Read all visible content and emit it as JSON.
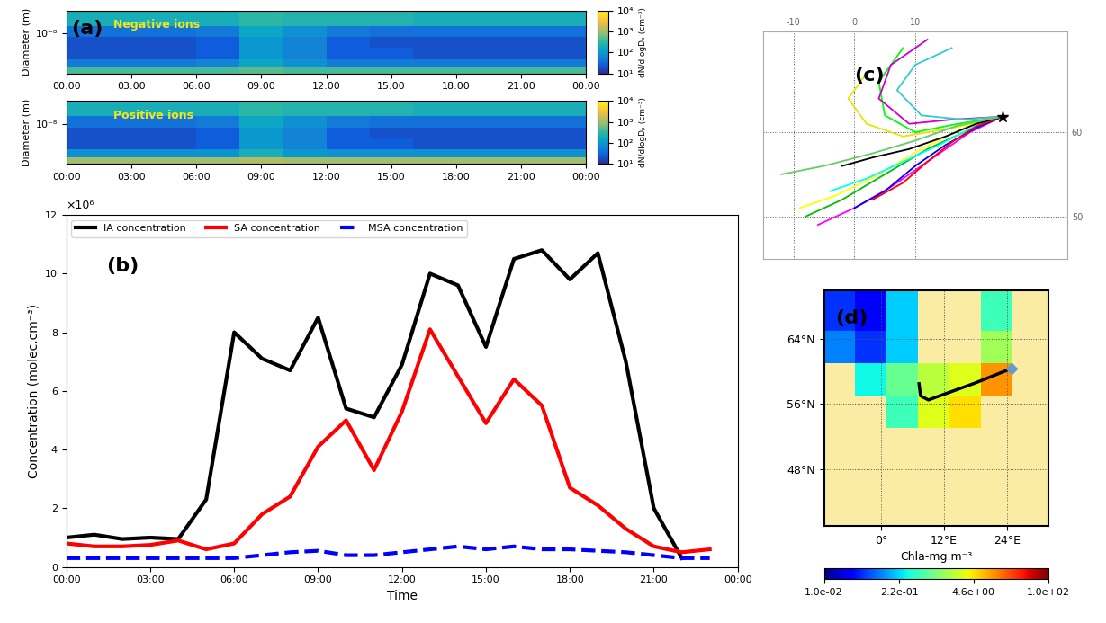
{
  "chart_data": [
    {
      "type": "heatmap",
      "panel_label": "(a)",
      "title": "Negative ions",
      "ylabel": "Diameter (m)",
      "log": "y",
      "x_edges": [
        0,
        2,
        4,
        6,
        8,
        10,
        12,
        14,
        16,
        18,
        20,
        22,
        24
      ],
      "y_edges": [
        8e-10,
        1.2e-09,
        2e-09,
        4e-09,
        8e-09,
        1.6e-08,
        4.2e-08
      ],
      "cells": [
        [
          400,
          400,
          400,
          400,
          500,
          400,
          400,
          400,
          400,
          400,
          400,
          400
        ],
        [
          50,
          50,
          50,
          60,
          150,
          80,
          50,
          50,
          50,
          50,
          50,
          50
        ],
        [
          20,
          20,
          20,
          25,
          100,
          60,
          25,
          25,
          20,
          20,
          20,
          20
        ],
        [
          20,
          20,
          20,
          25,
          100,
          60,
          25,
          20,
          20,
          20,
          20,
          20
        ],
        [
          40,
          40,
          40,
          50,
          150,
          80,
          50,
          40,
          40,
          40,
          40,
          40
        ],
        [
          200,
          200,
          200,
          200,
          300,
          250,
          250,
          250,
          200,
          200,
          200,
          200
        ]
      ],
      "xlim": [
        0,
        24
      ],
      "xticks": [
        {
          "value": 0,
          "label": "00:00"
        },
        {
          "value": 3,
          "label": "03:00"
        },
        {
          "value": 6,
          "label": "06:00"
        },
        {
          "value": 9,
          "label": "09:00"
        },
        {
          "value": 12,
          "label": "12:00"
        },
        {
          "value": 15,
          "label": "15:00"
        },
        {
          "value": 18,
          "label": "18:00"
        },
        {
          "value": 21,
          "label": "21:00"
        },
        {
          "value": 24,
          "label": "00:00"
        }
      ],
      "ylim": [
        8e-10,
        4.2e-08
      ],
      "yticks": [
        {
          "value": 1e-08,
          "label": "10⁻⁸"
        }
      ],
      "colorbar": {
        "label": "dN/dlogDₚ (cm⁻³)",
        "log": true,
        "lim": [
          10,
          10000
        ],
        "ticks": [
          {
            "value": 10,
            "label": "10¹"
          },
          {
            "value": 100,
            "label": "10²"
          },
          {
            "value": 1000,
            "label": "10³"
          },
          {
            "value": 10000,
            "label": "10⁴"
          }
        ]
      }
    },
    {
      "type": "heatmap",
      "title": "Positive ions",
      "ylabel": "Diameter (m)",
      "log": "y",
      "x_edges": [
        0,
        2,
        4,
        6,
        8,
        10,
        12,
        14,
        16,
        18,
        20,
        22,
        24
      ],
      "y_edges": [
        8e-10,
        1.2e-09,
        2e-09,
        4e-09,
        8e-09,
        1.6e-08,
        4.2e-08
      ],
      "cells": [
        [
          1000,
          1000,
          1000,
          1000,
          1200,
          1000,
          1000,
          1000,
          1000,
          1000,
          1000,
          1000
        ],
        [
          80,
          80,
          80,
          90,
          200,
          100,
          80,
          80,
          80,
          80,
          80,
          80
        ],
        [
          20,
          20,
          20,
          25,
          100,
          60,
          25,
          25,
          20,
          20,
          20,
          20
        ],
        [
          20,
          20,
          20,
          25,
          100,
          60,
          25,
          20,
          20,
          20,
          20,
          20
        ],
        [
          40,
          40,
          40,
          50,
          150,
          80,
          50,
          40,
          40,
          40,
          40,
          40
        ],
        [
          200,
          200,
          200,
          200,
          300,
          250,
          250,
          250,
          200,
          200,
          200,
          200
        ]
      ],
      "xlim": [
        0,
        24
      ],
      "xticks": [
        {
          "value": 0,
          "label": "00:00"
        },
        {
          "value": 3,
          "label": "03:00"
        },
        {
          "value": 6,
          "label": "06:00"
        },
        {
          "value": 9,
          "label": "09:00"
        },
        {
          "value": 12,
          "label": "12:00"
        },
        {
          "value": 15,
          "label": "15:00"
        },
        {
          "value": 18,
          "label": "18:00"
        },
        {
          "value": 21,
          "label": "21:00"
        },
        {
          "value": 24,
          "label": "00:00"
        }
      ],
      "ylim": [
        8e-10,
        4.2e-08
      ],
      "yticks": [
        {
          "value": 1e-08,
          "label": "10⁻⁸"
        }
      ],
      "colorbar": {
        "label": "dN/dlogDₚ (cm⁻³)",
        "log": true,
        "lim": [
          10,
          10000
        ],
        "ticks": [
          {
            "value": 10,
            "label": "10¹"
          },
          {
            "value": 100,
            "label": "10²"
          },
          {
            "value": 1000,
            "label": "10³"
          },
          {
            "value": 10000,
            "label": "10⁴"
          }
        ]
      }
    },
    {
      "type": "line",
      "panel_label": "(b)",
      "xlabel": "Time",
      "ylabel": "Concentration (molec.cm⁻³)",
      "annotations": [
        "×10⁶"
      ],
      "grid": false,
      "legend": "upper left",
      "x": [
        0,
        1,
        2,
        3,
        4,
        5,
        6,
        7,
        8,
        9,
        10,
        11,
        12,
        13,
        14,
        15,
        16,
        17,
        18,
        19,
        20,
        21,
        22,
        23
      ],
      "series": [
        {
          "name": "IA concentration",
          "color": "#000000",
          "line_style": "solid",
          "values": [
            1.0,
            1.1,
            0.95,
            1.0,
            0.95,
            2.3,
            8.0,
            7.1,
            6.7,
            8.5,
            5.4,
            5.1,
            6.9,
            10.0,
            9.6,
            7.5,
            10.5,
            10.8,
            9.8,
            10.7,
            7.0,
            2.0,
            0.3,
            null
          ]
        },
        {
          "name": "SA concentration",
          "color": "#ff0000",
          "line_style": "solid",
          "values": [
            0.8,
            0.7,
            0.7,
            0.75,
            0.9,
            0.6,
            0.8,
            1.8,
            2.4,
            4.1,
            5.0,
            3.3,
            5.3,
            8.1,
            6.5,
            4.9,
            6.4,
            5.5,
            2.7,
            2.1,
            1.3,
            0.7,
            0.5,
            0.6
          ]
        },
        {
          "name": "MSA concentration",
          "color": "#0000ff",
          "line_style": "dashed",
          "values": [
            0.3,
            0.3,
            0.3,
            0.3,
            0.3,
            0.3,
            0.3,
            0.4,
            0.5,
            0.55,
            0.4,
            0.4,
            0.5,
            0.6,
            0.7,
            0.6,
            0.7,
            0.6,
            0.6,
            0.55,
            0.5,
            0.4,
            0.3,
            0.3
          ]
        }
      ],
      "xlim": [
        0,
        24
      ],
      "xticks": [
        {
          "value": 0,
          "label": "00:00"
        },
        {
          "value": 3,
          "label": "03:00"
        },
        {
          "value": 6,
          "label": "06:00"
        },
        {
          "value": 9,
          "label": "09:00"
        },
        {
          "value": 12,
          "label": "12:00"
        },
        {
          "value": 15,
          "label": "15:00"
        },
        {
          "value": 18,
          "label": "18:00"
        },
        {
          "value": 21,
          "label": "21:00"
        },
        {
          "value": 24,
          "label": "00:00"
        }
      ],
      "ylim": [
        0,
        12
      ],
      "yticks": [
        0,
        2,
        4,
        6,
        8,
        10,
        12
      ]
    },
    {
      "type": "trajectory_map",
      "panel_label": "(c)",
      "grid": true,
      "xlim": [
        -15,
        35
      ],
      "xticks": [
        -10,
        0,
        10
      ],
      "ylim": [
        45,
        72
      ],
      "yticks": [
        50,
        60
      ],
      "station": {
        "lon": 24.3,
        "lat": 61.85
      },
      "trajectories": [
        {
          "color": "#00c000",
          "lon": [
            -8,
            -2,
            5,
            12,
            18,
            24.3
          ],
          "lat": [
            50,
            52,
            55,
            58,
            60,
            61.85
          ]
        },
        {
          "color": "#ff00ff",
          "lon": [
            -6,
            0,
            6,
            13,
            19,
            24.3
          ],
          "lat": [
            49,
            51,
            53.5,
            57,
            60,
            61.85
          ]
        },
        {
          "color": "#ffff00",
          "lon": [
            -9,
            -3,
            4,
            11,
            18,
            24.3
          ],
          "lat": [
            51,
            52.5,
            55,
            58,
            60.5,
            61.85
          ]
        },
        {
          "color": "#00ffff",
          "lon": [
            -4,
            2,
            8,
            14,
            20,
            24.3
          ],
          "lat": [
            53,
            54.5,
            56.5,
            58.5,
            60.8,
            61.85
          ]
        },
        {
          "color": "#0000ff",
          "lon": [
            0,
            5,
            10,
            15,
            20,
            24.3
          ],
          "lat": [
            51,
            53,
            56,
            58.5,
            60.5,
            61.85
          ]
        },
        {
          "color": "#ff0000",
          "lon": [
            3,
            8,
            12,
            16,
            20,
            24.3
          ],
          "lat": [
            52,
            54,
            56.5,
            58.8,
            60.7,
            61.85
          ]
        },
        {
          "color": "#00ff00",
          "lon": [
            8,
            4,
            5,
            10,
            17,
            24.3
          ],
          "lat": [
            70,
            66,
            62,
            60,
            61,
            61.85
          ]
        },
        {
          "color": "#cc00cc",
          "lon": [
            12,
            6,
            4,
            9,
            16,
            24.3
          ],
          "lat": [
            71,
            68,
            64,
            61,
            61.5,
            61.85
          ]
        },
        {
          "color": "#33cccc",
          "lon": [
            16,
            10,
            7,
            11,
            18,
            24.3
          ],
          "lat": [
            70,
            68,
            65,
            62,
            61.5,
            61.85
          ]
        },
        {
          "color": "#e6e600",
          "lon": [
            2,
            -1,
            2,
            8,
            16,
            24.3
          ],
          "lat": [
            67,
            64,
            61,
            59.5,
            60.5,
            61.85
          ]
        },
        {
          "color": "#000000",
          "lon": [
            -2,
            3,
            9,
            15,
            20,
            24.3
          ],
          "lat": [
            56,
            57,
            58,
            59.5,
            61,
            61.85
          ]
        },
        {
          "color": "#66cc66",
          "lon": [
            -12,
            -5,
            3,
            10,
            17,
            24.3
          ],
          "lat": [
            55,
            56,
            57.5,
            59,
            60.8,
            61.85
          ]
        }
      ]
    },
    {
      "type": "heatmap_map",
      "panel_label": "(d)",
      "xlabel": "Chla-mg.m⁻³",
      "grid": true,
      "x_edges": [
        -11,
        -5,
        1,
        7,
        13,
        19,
        25,
        32
      ],
      "y_edges": [
        41,
        47,
        53,
        57,
        61,
        65,
        70
      ],
      "cells": [
        [
          null,
          null,
          null,
          null,
          null,
          null,
          null
        ],
        [
          null,
          null,
          null,
          null,
          null,
          null,
          null
        ],
        [
          null,
          null,
          0.5,
          3.0,
          5.0,
          null,
          null
        ],
        [
          null,
          0.3,
          0.8,
          2.0,
          3.0,
          10,
          null
        ],
        [
          0.1,
          0.05,
          0.2,
          null,
          null,
          1.5,
          null
        ],
        [
          0.05,
          0.03,
          0.2,
          null,
          null,
          0.5,
          null
        ]
      ],
      "trajectory": {
        "color": "#000000",
        "lon": [
          25,
          18,
          12,
          9,
          7.5,
          7.2
        ],
        "lat": [
          60.4,
          58.6,
          57.2,
          56.5,
          57,
          58.5
        ]
      },
      "station": {
        "lon": 25,
        "lat": 60.4
      },
      "xlim": [
        -11,
        32
      ],
      "xticks": [
        {
          "value": 0,
          "label": "0°"
        },
        {
          "value": 12,
          "label": "12°E"
        },
        {
          "value": 24,
          "label": "24°E"
        }
      ],
      "ylim": [
        41,
        70
      ],
      "yticks": [
        {
          "value": 48,
          "label": "48°N"
        },
        {
          "value": 56,
          "label": "56°N"
        },
        {
          "value": 64,
          "label": "64°N"
        }
      ],
      "colorbar": {
        "log": true,
        "lim": [
          0.01,
          100
        ],
        "ticks": [
          {
            "value": 0.01,
            "label": "1.0e-02"
          },
          {
            "value": 0.22,
            "label": "2.2e-01"
          },
          {
            "value": 4.6,
            "label": "4.6e+00"
          },
          {
            "value": 100,
            "label": "1.0e+02"
          }
        ]
      }
    }
  ]
}
